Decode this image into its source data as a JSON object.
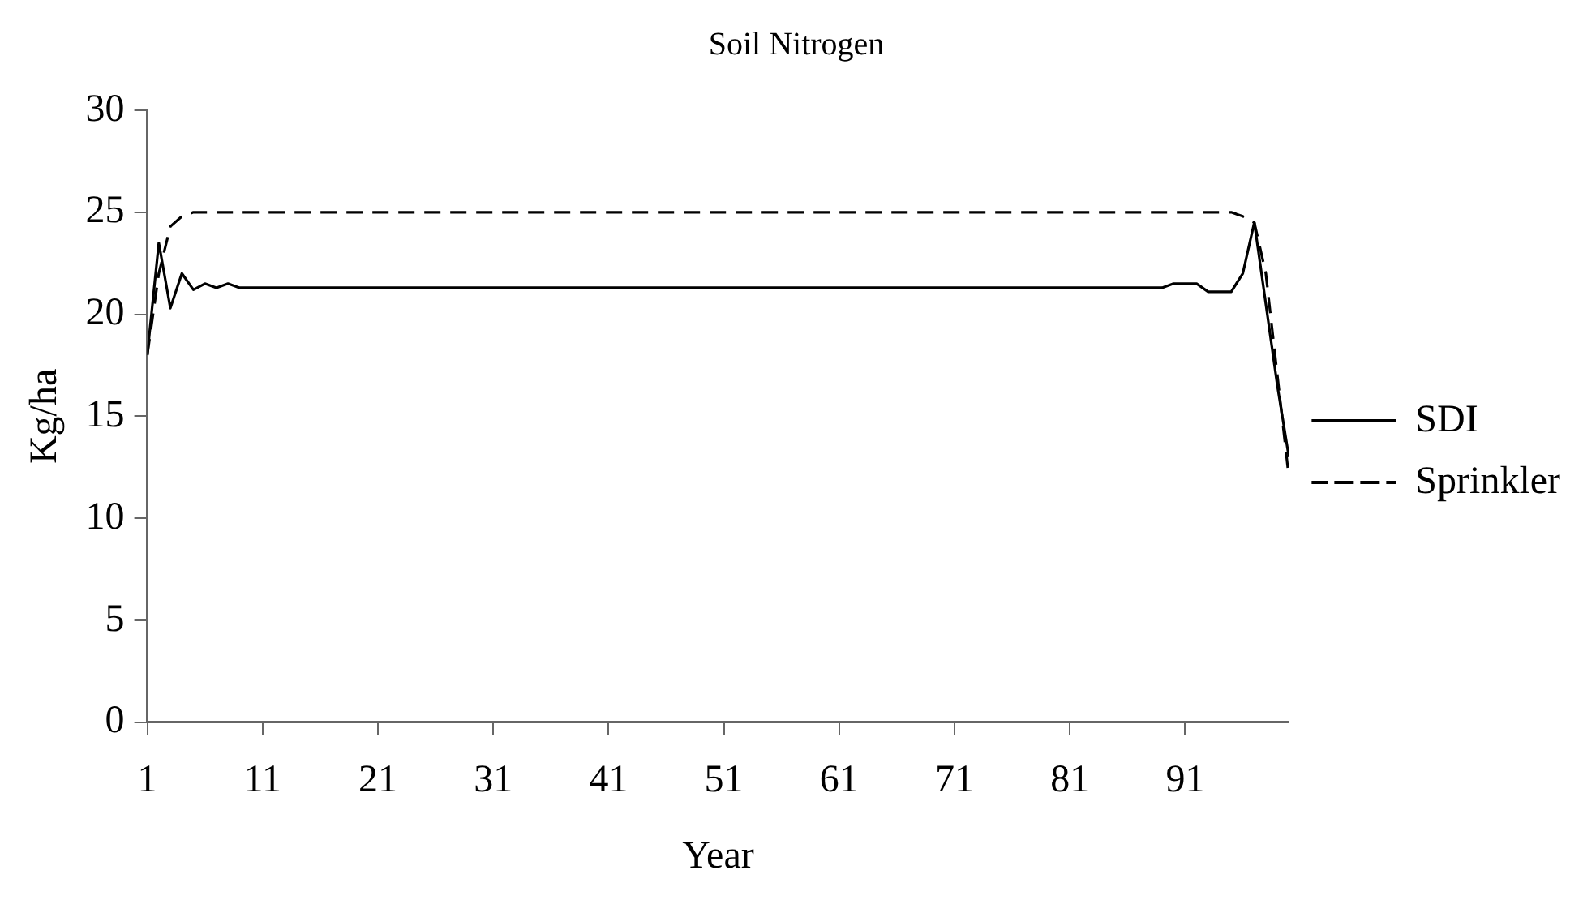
{
  "chart_data": {
    "type": "line",
    "title": "Soil Nitrogen",
    "xlabel": "Year",
    "ylabel": "Kg/ha",
    "x": [
      1,
      2,
      3,
      4,
      5,
      6,
      7,
      8,
      9,
      10,
      11,
      12,
      13,
      14,
      15,
      16,
      17,
      18,
      19,
      20,
      21,
      22,
      23,
      24,
      25,
      26,
      27,
      28,
      29,
      30,
      31,
      32,
      33,
      34,
      35,
      36,
      37,
      38,
      39,
      40,
      41,
      42,
      43,
      44,
      45,
      46,
      47,
      48,
      49,
      50,
      51,
      52,
      53,
      54,
      55,
      56,
      57,
      58,
      59,
      60,
      61,
      62,
      63,
      64,
      65,
      66,
      67,
      68,
      69,
      70,
      71,
      72,
      73,
      74,
      75,
      76,
      77,
      78,
      79,
      80,
      81,
      82,
      83,
      84,
      85,
      86,
      87,
      88,
      89,
      90,
      91,
      92,
      93,
      94,
      95,
      96,
      97,
      98,
      99,
      100
    ],
    "series": [
      {
        "name": "SDI",
        "color": "#000000",
        "line_style": "solid",
        "values": [
          18,
          23.5,
          20.3,
          22,
          21.2,
          21.5,
          21.3,
          21.5,
          21.3,
          21.3,
          21.3,
          21.3,
          21.3,
          21.3,
          21.3,
          21.3,
          21.3,
          21.3,
          21.3,
          21.3,
          21.3,
          21.3,
          21.3,
          21.3,
          21.3,
          21.3,
          21.3,
          21.3,
          21.3,
          21.3,
          21.3,
          21.3,
          21.3,
          21.3,
          21.3,
          21.3,
          21.3,
          21.3,
          21.3,
          21.3,
          21.3,
          21.3,
          21.3,
          21.3,
          21.3,
          21.3,
          21.3,
          21.3,
          21.3,
          21.3,
          21.3,
          21.3,
          21.3,
          21.3,
          21.3,
          21.3,
          21.3,
          21.3,
          21.3,
          21.3,
          21.3,
          21.3,
          21.3,
          21.3,
          21.3,
          21.3,
          21.3,
          21.3,
          21.3,
          21.3,
          21.3,
          21.3,
          21.3,
          21.3,
          21.3,
          21.3,
          21.3,
          21.3,
          21.3,
          21.3,
          21.3,
          21.3,
          21.3,
          21.3,
          21.3,
          21.3,
          21.3,
          21.3,
          21.3,
          21.5,
          21.5,
          21.5,
          21.1,
          21.1,
          21.1,
          22,
          24.5,
          20.5,
          16.5,
          13
        ]
      },
      {
        "name": "Sprinkler",
        "color": "#000000",
        "line_style": "dashed",
        "values": [
          18,
          22,
          24.3,
          24.8,
          25,
          25,
          25,
          25,
          25,
          25,
          25,
          25,
          25,
          25,
          25,
          25,
          25,
          25,
          25,
          25,
          25,
          25,
          25,
          25,
          25,
          25,
          25,
          25,
          25,
          25,
          25,
          25,
          25,
          25,
          25,
          25,
          25,
          25,
          25,
          25,
          25,
          25,
          25,
          25,
          25,
          25,
          25,
          25,
          25,
          25,
          25,
          25,
          25,
          25,
          25,
          25,
          25,
          25,
          25,
          25,
          25,
          25,
          25,
          25,
          25,
          25,
          25,
          25,
          25,
          25,
          25,
          25,
          25,
          25,
          25,
          25,
          25,
          25,
          25,
          25,
          25,
          25,
          25,
          25,
          25,
          25,
          25,
          25,
          25,
          25,
          25,
          25,
          25,
          25,
          25,
          24.8,
          24.5,
          22,
          17,
          12
        ]
      }
    ],
    "xlim": [
      1,
      100
    ],
    "xticks": [
      1,
      11,
      21,
      31,
      41,
      51,
      61,
      71,
      81,
      91
    ],
    "ylim": [
      0,
      30
    ],
    "yticks": [
      0,
      5,
      10,
      15,
      20,
      25,
      30
    ],
    "grid": false,
    "legend": "right",
    "marker": "none"
  }
}
